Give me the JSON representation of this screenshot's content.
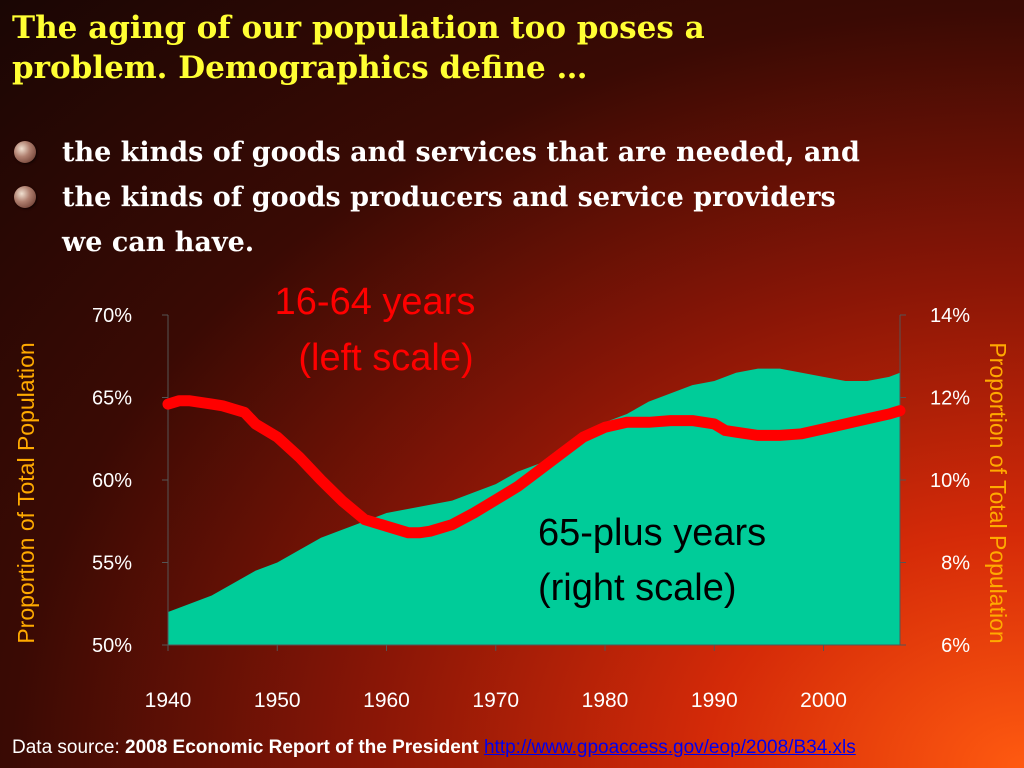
{
  "title": {
    "line1": "The aging of our population too poses a",
    "line2": "problem. Demographics define …"
  },
  "bullets": [
    {
      "text": "the kinds of goods and services that are needed, and"
    },
    {
      "text": "the kinds of goods producers and service providers",
      "continuation": "we can have."
    }
  ],
  "colors": {
    "title": "#ffff33",
    "line_series": "#ff0000",
    "area_series": "#00cc99",
    "axis_label": "#ffaa00",
    "tick_text": "#ffffff"
  },
  "chart_data": {
    "type": "area+line",
    "x_ticks": [
      "1940",
      "1950",
      "1960",
      "1970",
      "1980",
      "1990",
      "2000"
    ],
    "left_axis": {
      "label": "Proportion of Total Population",
      "ticks": [
        "70%",
        "65%",
        "60%",
        "55%",
        "50%"
      ],
      "range": [
        50,
        70
      ]
    },
    "right_axis": {
      "label": "Proportion of Total Population",
      "ticks": [
        "14%",
        "12%",
        "10%",
        "8%",
        "6%"
      ],
      "range": [
        6,
        14
      ]
    },
    "xlim": [
      1940,
      2007
    ],
    "series": [
      {
        "name": "16-64 years",
        "note": "(left scale)",
        "type": "line",
        "axis": "left",
        "x": [
          1940,
          1941,
          1942,
          1943,
          1944,
          1945,
          1946,
          1947,
          1948,
          1950,
          1952,
          1954,
          1956,
          1958,
          1960,
          1962,
          1963,
          1964,
          1966,
          1968,
          1970,
          1972,
          1974,
          1976,
          1978,
          1980,
          1982,
          1984,
          1986,
          1988,
          1990,
          1991,
          1992,
          1994,
          1996,
          1998,
          2000,
          2002,
          2004,
          2006,
          2007
        ],
        "values": [
          64.6,
          64.8,
          64.8,
          64.7,
          64.6,
          64.5,
          64.3,
          64.1,
          63.4,
          62.6,
          61.4,
          60.0,
          58.7,
          57.6,
          57.2,
          56.8,
          56.8,
          56.9,
          57.3,
          58.0,
          58.8,
          59.6,
          60.6,
          61.6,
          62.6,
          63.2,
          63.5,
          63.5,
          63.6,
          63.6,
          63.4,
          63.0,
          62.9,
          62.7,
          62.7,
          62.8,
          63.1,
          63.4,
          63.7,
          64.0,
          64.2
        ]
      },
      {
        "name": "65-plus years",
        "note": "(right scale)",
        "type": "area",
        "axis": "right",
        "x": [
          1940,
          1942,
          1944,
          1946,
          1948,
          1950,
          1952,
          1954,
          1956,
          1958,
          1960,
          1962,
          1964,
          1966,
          1968,
          1970,
          1972,
          1974,
          1976,
          1978,
          1980,
          1982,
          1984,
          1986,
          1988,
          1990,
          1992,
          1994,
          1996,
          1998,
          2000,
          2002,
          2004,
          2006,
          2007
        ],
        "values": [
          6.8,
          7.0,
          7.2,
          7.5,
          7.8,
          8.0,
          8.3,
          8.6,
          8.8,
          9.0,
          9.2,
          9.3,
          9.4,
          9.5,
          9.7,
          9.9,
          10.2,
          10.4,
          10.8,
          11.1,
          11.4,
          11.6,
          11.9,
          12.1,
          12.3,
          12.4,
          12.6,
          12.7,
          12.7,
          12.6,
          12.5,
          12.4,
          12.4,
          12.5,
          12.6
        ]
      }
    ]
  },
  "footer": {
    "prefix": "Data source: ",
    "source": "2008 Economic Report of the President",
    "link": "http://www.gpoaccess.gov/eop/2008/B34.xls"
  }
}
